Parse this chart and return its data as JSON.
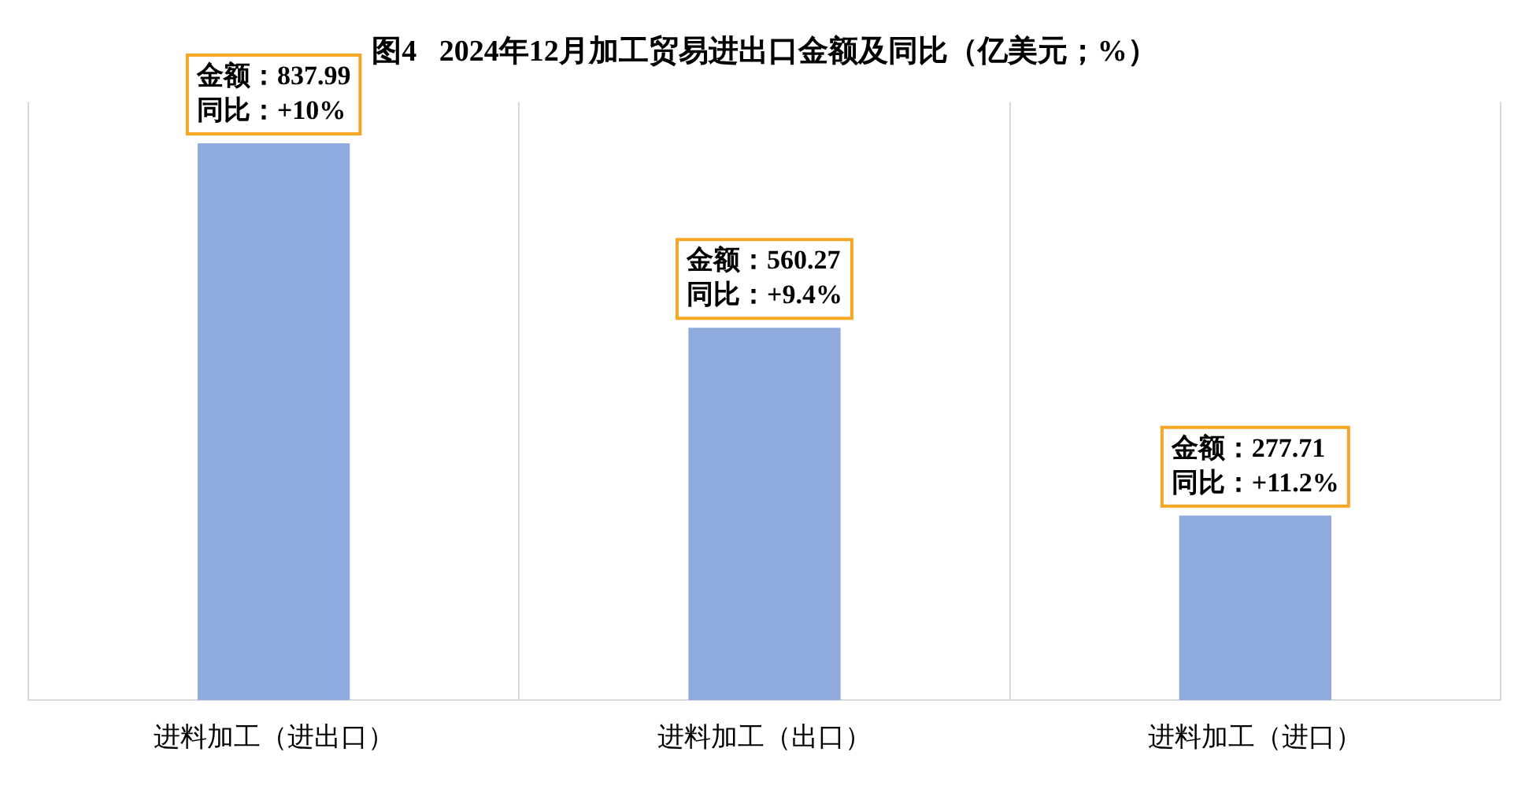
{
  "chart_data": {
    "type": "bar",
    "title": "图4   2024年12月加工贸易进出口金额及同比（亿美元；%）",
    "categories": [
      "进料加工（进出口）",
      "进料加工（出口）",
      "进料加工（进口）"
    ],
    "values": [
      837.99,
      560.27,
      277.71
    ],
    "value_labels": [
      "金额：837.99\n同比：+10%",
      "金额：560.27\n同比：+9.4%",
      "金额：277.71\n同比：+11.2%"
    ],
    "color": "#8faadc",
    "grid": "x",
    "legend": false
  }
}
